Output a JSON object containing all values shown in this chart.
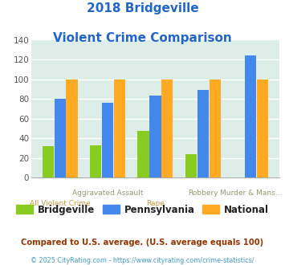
{
  "title_line1": "2018 Bridgeville",
  "title_line2": "Violent Crime Comparison",
  "title_color": "#2266cc",
  "categories": [
    "All Violent Crime",
    "Aggravated Assault",
    "Rape",
    "Robbery",
    "Murder & Mans..."
  ],
  "xtick_top": [
    "",
    "Aggravated Assault",
    "",
    "Robbery",
    "Murder & Mans..."
  ],
  "xtick_bottom": [
    "All Violent Crime",
    "",
    "Rape",
    "",
    ""
  ],
  "bridgeville": [
    32,
    33,
    47,
    24,
    0
  ],
  "pennsylvania": [
    80,
    76,
    83,
    89,
    124
  ],
  "national": [
    100,
    100,
    100,
    100,
    100
  ],
  "color_bridgeville": "#88cc22",
  "color_pennsylvania": "#4488ee",
  "color_national": "#ffaa22",
  "ylim": [
    0,
    140
  ],
  "yticks": [
    0,
    20,
    40,
    60,
    80,
    100,
    120,
    140
  ],
  "bg_color": "#ddeee8",
  "legend_labels": [
    "Bridgeville",
    "Pennsylvania",
    "National"
  ],
  "legend_label_color": "#222222",
  "footnote1": "Compared to U.S. average. (U.S. average equals 100)",
  "footnote2": "© 2025 CityRating.com - https://www.cityrating.com/crime-statistics/",
  "footnote1_color": "#993300",
  "footnote2_color": "#4499cc",
  "xtick_top_color": "#999977",
  "xtick_bot_color": "#cc9944"
}
